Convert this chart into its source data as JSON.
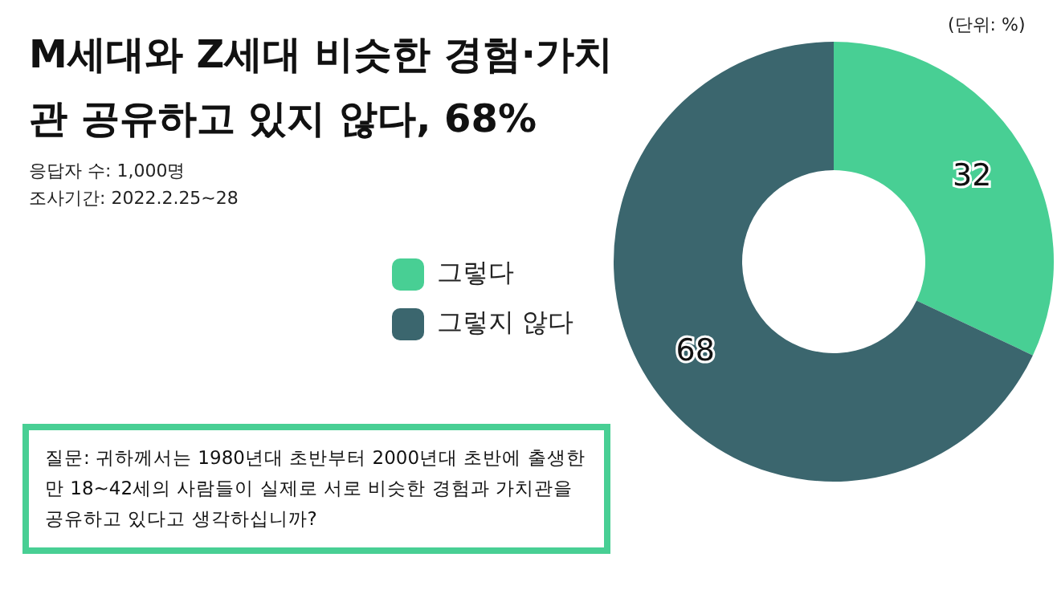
{
  "chart_data": {
    "type": "donut",
    "title": "M세대와 Z세대 비슷한 경험·가치관 공유하고 있지 않다, 68%",
    "subtitle": "응답자 수: 1,000명\n조사기간: 2022.2.25~28",
    "categories": [
      "그렇다",
      "그렇지 않다"
    ],
    "values": [
      32,
      68
    ],
    "colors": [
      "#48cf94",
      "#3b666e"
    ],
    "data_labels": true,
    "legend": "left",
    "annotations": [
      "(단위: %)",
      "질문: 귀하께서는 1980년대 초반부터 2000년대 초반에 출생한 만 18~42세의 사람들이 실제로 서로 비슷한 경험과 가치관을 공유하고 있다고 생각하십니까?"
    ]
  }
}
